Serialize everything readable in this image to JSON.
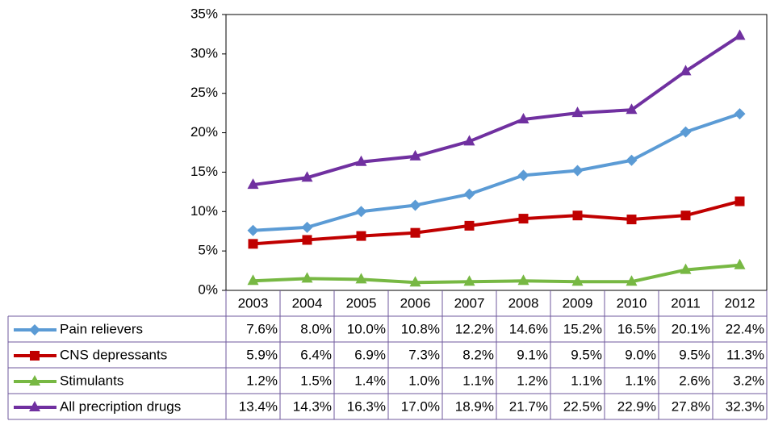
{
  "chart_data": {
    "type": "line",
    "categories": [
      "2003",
      "2004",
      "2005",
      "2006",
      "2007",
      "2008",
      "2009",
      "2010",
      "2011",
      "2012"
    ],
    "series": [
      {
        "name": "Pain relievers",
        "color": "#5b9bd5",
        "marker": "diamond",
        "values": [
          7.6,
          8.0,
          10.0,
          10.8,
          12.2,
          14.6,
          15.2,
          16.5,
          20.1,
          22.4
        ],
        "value_labels": [
          "7.6%",
          "8.0%",
          "10.0%",
          "10.8%",
          "12.2%",
          "14.6%",
          "15.2%",
          "16.5%",
          "20.1%",
          "22.4%"
        ]
      },
      {
        "name": "CNS depressants",
        "color": "#c00000",
        "marker": "square",
        "values": [
          5.9,
          6.4,
          6.9,
          7.3,
          8.2,
          9.1,
          9.5,
          9.0,
          9.5,
          11.3
        ],
        "value_labels": [
          "5.9%",
          "6.4%",
          "6.9%",
          "7.3%",
          "8.2%",
          "9.1%",
          "9.5%",
          "9.0%",
          "9.5%",
          "11.3%"
        ]
      },
      {
        "name": "Stimulants",
        "color": "#77b843",
        "marker": "triangle",
        "values": [
          1.2,
          1.5,
          1.4,
          1.0,
          1.1,
          1.2,
          1.1,
          1.1,
          2.6,
          3.2
        ],
        "value_labels": [
          "1.2%",
          "1.5%",
          "1.4%",
          "1.0%",
          "1.1%",
          "1.2%",
          "1.1%",
          "1.1%",
          "2.6%",
          "3.2%"
        ]
      },
      {
        "name": "All precription drugs",
        "color": "#7030a0",
        "marker": "triangle",
        "values": [
          13.4,
          14.3,
          16.3,
          17.0,
          18.9,
          21.7,
          22.5,
          22.9,
          27.8,
          32.3
        ],
        "value_labels": [
          "13.4%",
          "14.3%",
          "16.3%",
          "17.0%",
          "18.9%",
          "21.7%",
          "22.5%",
          "22.9%",
          "27.8%",
          "32.3%"
        ]
      }
    ],
    "ylim": [
      0,
      35
    ],
    "yticks": [
      {
        "value": 0,
        "label": "0%"
      },
      {
        "value": 5,
        "label": "5%"
      },
      {
        "value": 10,
        "label": "10%"
      },
      {
        "value": 15,
        "label": "15%"
      },
      {
        "value": 20,
        "label": "20%"
      },
      {
        "value": 25,
        "label": "25%"
      },
      {
        "value": 30,
        "label": "30%"
      },
      {
        "value": 35,
        "label": "35%"
      }
    ],
    "grid": false
  }
}
